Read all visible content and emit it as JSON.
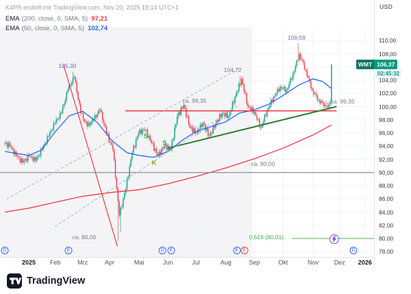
{
  "attribution": "K4PR erstellt mit TradingView.com, Nov 20, 2025 19:14 UTC+1",
  "legend": {
    "ema200": {
      "name": "EMA",
      "params": "(200, close, 0, SMA, 5)",
      "value": "97,21",
      "color": "#f23645"
    },
    "ema50": {
      "name": "EMA",
      "params": "(50, close, 0, SMA, 5)",
      "value": "102,74",
      "color": "#2962ff"
    }
  },
  "footer": {
    "brand": "TradingView"
  },
  "chart_data": {
    "type": "candlestick",
    "symbol": "WMT",
    "last_price": 106.37,
    "axes": {
      "y_domain": [
        77.2,
        112.0
      ],
      "x_range": "Dec 2024 - Dec 2025",
      "grid": true
    },
    "price_axis": {
      "currency": "USD",
      "last_price_label": {
        "symbol": "WMT",
        "price": "106,37",
        "countdown": "02:45:32",
        "color": "#089981"
      },
      "ticks": [
        {
          "value": 110,
          "label": "110,00"
        },
        {
          "value": 108,
          "label": "108,00"
        },
        {
          "value": 106,
          "label": "106,00"
        },
        {
          "value": 104,
          "label": "104,00"
        },
        {
          "value": 102,
          "label": "102,00"
        },
        {
          "value": 100,
          "label": "100,00"
        },
        {
          "value": 98,
          "label": "98,00"
        },
        {
          "value": 96,
          "label": "96,00"
        },
        {
          "value": 94,
          "label": "94,00"
        },
        {
          "value": 92,
          "label": "92,00"
        },
        {
          "value": 90,
          "label": "90,00"
        },
        {
          "value": 88,
          "label": "88,00"
        },
        {
          "value": 86,
          "label": "86,00"
        },
        {
          "value": 84,
          "label": "84,00"
        },
        {
          "value": 82,
          "label": "82,00"
        },
        {
          "value": 80,
          "label": "80,00"
        },
        {
          "value": 78,
          "label": "78,00"
        }
      ]
    },
    "time_axis": {
      "ticks": [
        {
          "f": 0.077,
          "label": "2025",
          "major": true
        },
        {
          "f": 0.148,
          "label": "Feb"
        },
        {
          "f": 0.221,
          "label": "Mrz"
        },
        {
          "f": 0.293,
          "label": "Apr"
        },
        {
          "f": 0.372,
          "label": "Mai"
        },
        {
          "f": 0.449,
          "label": "Jun"
        },
        {
          "f": 0.524,
          "label": "Jul"
        },
        {
          "f": 0.604,
          "label": "Aug"
        },
        {
          "f": 0.68,
          "label": "Sep"
        },
        {
          "f": 0.757,
          "label": "Okt"
        },
        {
          "f": 0.837,
          "label": "Nov"
        },
        {
          "f": 0.908,
          "label": "Dez"
        },
        {
          "f": 0.976,
          "label": "2026",
          "major": true
        }
      ]
    },
    "colors": {
      "up": "#089981",
      "down": "#f23645",
      "grid": "#f0f3f7",
      "shaded": "rgba(145,152,165,0.10)"
    },
    "shaded_region_end": 0.674,
    "start_price": 94.5,
    "volatility": 0.5,
    "weekly_closes": [
      94.0,
      92.5,
      91.5,
      92.5,
      91.8,
      93.5,
      95.5,
      97.5,
      99.0,
      102.5,
      104.5,
      99.0,
      97.0,
      98.0,
      99.5,
      96.0,
      93.5,
      83.5,
      87.5,
      93.0,
      96.0,
      96.5,
      94.5,
      92.5,
      94.0,
      93.5,
      98.5,
      100.2,
      96.8,
      96.0,
      97.5,
      95.5,
      97.5,
      99.0,
      98.5,
      101.5,
      104.2,
      100.0,
      99.2,
      96.8,
      99.5,
      101.5,
      103.0,
      102.5,
      105.0,
      108.0,
      105.5,
      102.5,
      101.0,
      100.2,
      106.37
    ],
    "key_candles": [
      {
        "index": 53,
        "high": 105.3
      },
      {
        "index": 88,
        "low": 79.55
      },
      {
        "index": 90,
        "low": 81.0
      },
      {
        "index": 183,
        "high": 104.72
      },
      {
        "index": 228,
        "high": 109.59
      },
      {
        "index": 250,
        "ohlc": [
          100.2,
          100.9,
          99.6,
          100.0
        ]
      },
      {
        "index": 251,
        "ohlc": [
          100.0,
          100.6,
          99.4,
          99.9
        ]
      },
      {
        "index": 252,
        "ohlc": [
          99.9,
          100.8,
          99.45,
          100.3
        ]
      },
      {
        "index": 253,
        "ohlc": [
          100.3,
          101.2,
          99.8,
          100.6
        ]
      },
      {
        "index": 254,
        "ohlc": [
          100.6,
          106.45,
          100.2,
          106.37
        ]
      }
    ],
    "ema50": {
      "name": "EMA 50",
      "color": "#2962ff",
      "last_value": 102.74,
      "points": [
        [
          0.013,
          93.2
        ],
        [
          0.077,
          92.6
        ],
        [
          0.11,
          93.4
        ],
        [
          0.148,
          96.2
        ],
        [
          0.185,
          98.6
        ],
        [
          0.221,
          99.3
        ],
        [
          0.26,
          97.6
        ],
        [
          0.3,
          94.8
        ],
        [
          0.34,
          93.0
        ],
        [
          0.372,
          92.6
        ],
        [
          0.41,
          92.3
        ],
        [
          0.449,
          93.2
        ],
        [
          0.49,
          95.0
        ],
        [
          0.524,
          96.2
        ],
        [
          0.56,
          96.9
        ],
        [
          0.604,
          97.7
        ],
        [
          0.64,
          99.0
        ],
        [
          0.68,
          99.5
        ],
        [
          0.72,
          100.4
        ],
        [
          0.757,
          101.7
        ],
        [
          0.8,
          103.3
        ],
        [
          0.837,
          104.2
        ],
        [
          0.862,
          103.8
        ],
        [
          0.886,
          102.74
        ]
      ]
    },
    "ema200": {
      "name": "EMA 200",
      "color": "#f23645",
      "last_value": 97.21,
      "points": [
        [
          0.013,
          84.0
        ],
        [
          0.077,
          84.6
        ],
        [
          0.148,
          85.5
        ],
        [
          0.221,
          86.4
        ],
        [
          0.3,
          87.0
        ],
        [
          0.372,
          87.4
        ],
        [
          0.449,
          88.3
        ],
        [
          0.524,
          89.4
        ],
        [
          0.604,
          90.7
        ],
        [
          0.68,
          92.1
        ],
        [
          0.757,
          93.7
        ],
        [
          0.837,
          95.7
        ],
        [
          0.886,
          97.21
        ]
      ]
    },
    "lines": [
      {
        "id": "resistance-99-35",
        "x1": 0.335,
        "p1": 99.35,
        "x2": 0.9,
        "p2": 99.35,
        "color": "#f23645",
        "w": 1.5
      },
      {
        "id": "ascending-trendline",
        "x1": 0.449,
        "p1": 93.7,
        "x2": 0.9,
        "p2": 100.0,
        "color": "#2e7d32",
        "w": 2
      },
      {
        "id": "level-90",
        "x1": 0.0,
        "p1": 90.0,
        "x2": 1.0,
        "p2": 90.0,
        "color": "#8c8f99",
        "w": 1.2
      },
      {
        "id": "downtrend-feb-apr",
        "x1": 0.17,
        "p1": 106.3,
        "x2": 0.314,
        "p2": 78.8,
        "color": "#f23645",
        "w": 1.2
      },
      {
        "id": "dashed-channel-upper",
        "x1": 0.018,
        "p1": 86.0,
        "x2": 0.64,
        "p2": 105.8,
        "color": "#b3b6bf",
        "w": 1.1,
        "dash": "4,3"
      },
      {
        "id": "dashed-channel-lower",
        "x1": 0.147,
        "p1": 81.8,
        "x2": 0.64,
        "p2": 100.3,
        "color": "#b3b6bf",
        "w": 1.1,
        "dash": "4,3"
      },
      {
        "id": "fib-0618",
        "x1": 0.78,
        "p1": 80.01,
        "x2": 1.0,
        "p2": 80.01,
        "color": "#4caf50",
        "w": 1
      }
    ],
    "annotations": [
      {
        "f": 0.18,
        "p": 106.2,
        "text": "105,30",
        "color": "#6266c4"
      },
      {
        "f": 0.793,
        "p": 110.4,
        "text": "109,59",
        "color": "#6266c4"
      },
      {
        "f": 0.622,
        "p": 105.6,
        "text": "104,72",
        "color": "#787b86"
      },
      {
        "f": 0.52,
        "p": 100.9,
        "text": "ca. 99,35",
        "color": "#787b86"
      },
      {
        "f": 0.916,
        "p": 100.8,
        "text": "ca. 99,35",
        "color": "#787b86"
      },
      {
        "f": 0.703,
        "p": 91.3,
        "text": "ca. 90,00",
        "color": "#787b86"
      },
      {
        "f": 0.225,
        "p": 80.2,
        "text": "ca. 80,00",
        "color": "#787b86"
      },
      {
        "f": 0.712,
        "p": 80.2,
        "text": "0,618 (80,01)",
        "color": "#4caf50"
      },
      {
        "f": 0.39,
        "p": 95.5,
        "text": "S",
        "color": "#43a047",
        "bold": true
      },
      {
        "f": 0.412,
        "p": 91.4,
        "text": "K",
        "color": "#9e9d24",
        "bold": true
      },
      {
        "f": 0.44,
        "p": 94.4,
        "text": "S",
        "color": "#43a047",
        "bold": true
      }
    ],
    "markers": [
      {
        "f": 0.013,
        "t": "D",
        "color": "#2962ff"
      },
      {
        "f": 0.183,
        "t": "E",
        "color": "#2962ff"
      },
      {
        "f": 0.434,
        "t": "D",
        "color": "#2962ff"
      },
      {
        "f": 0.458,
        "t": "E",
        "color": "#2962ff"
      },
      {
        "f": 0.633,
        "t": "E",
        "color": "#2962ff"
      },
      {
        "f": 0.653,
        "t": "E",
        "color": "#f23645"
      },
      {
        "f": 0.893,
        "t": "flash",
        "color": "#7e57c2"
      },
      {
        "f": 0.945,
        "t": "D",
        "color": "#2962ff"
      }
    ],
    "key_levels": [
      {
        "name": "resistance / neckline",
        "price": 99.35
      },
      {
        "name": "support",
        "price": 90.0
      },
      {
        "name": "support",
        "price": 80.0
      },
      {
        "name": "fib 0.618 retracement",
        "price": 80.01
      }
    ]
  }
}
